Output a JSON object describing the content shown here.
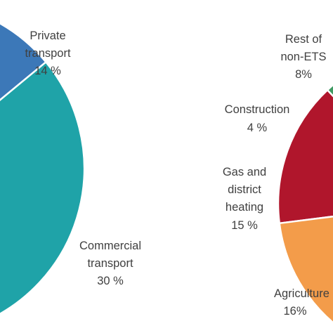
{
  "chart_data": [
    {
      "type": "pie",
      "slices": [
        {
          "label_lines": [
            "Private",
            "transport"
          ],
          "value_text": "14 %",
          "value": 14,
          "color": "#3c78b8"
        },
        {
          "label_lines": [
            "Commercial",
            "transport"
          ],
          "value_text": "30 %",
          "value": 30,
          "color": "#1fa3a8"
        }
      ],
      "partial_colors": [
        "#f39c4a"
      ]
    },
    {
      "type": "pie",
      "slices": [
        {
          "label_lines": [
            "Rest of",
            "non-ETS"
          ],
          "value_text": "8%",
          "value": 8,
          "color": "#14695f"
        },
        {
          "label_lines": [
            "Construction"
          ],
          "value_text": "4 %",
          "value": 4,
          "color": "#3f9b63"
        },
        {
          "label_lines": [
            "Gas and",
            "district",
            "heating"
          ],
          "value_text": "15 %",
          "value": 15,
          "color": "#b0162c"
        },
        {
          "label_lines": [
            "Agriculture"
          ],
          "value_text": "16%",
          "value": 16,
          "color": "#f39c4a"
        }
      ]
    }
  ]
}
